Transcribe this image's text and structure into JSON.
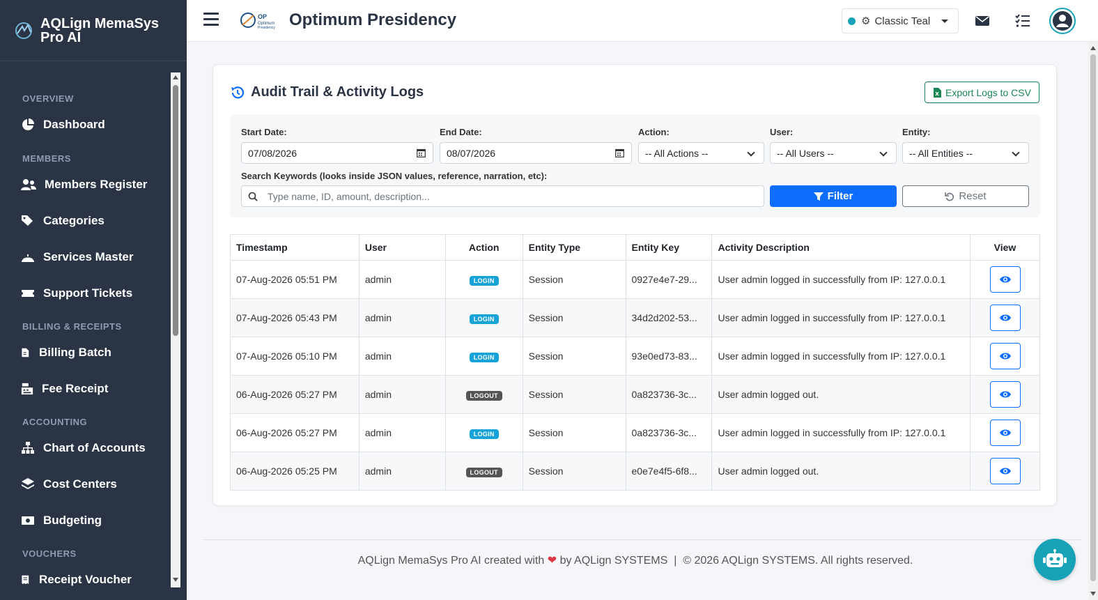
{
  "sidebar": {
    "brand": "AQLign MemaSys Pro AI",
    "sections": {
      "overview": "OVERVIEW",
      "members": "MEMBERS",
      "billing": "BILLING & RECEIPTS",
      "accounting": "ACCOUNTING",
      "vouchers": "VOUCHERS"
    },
    "items": {
      "dashboard": "Dashboard",
      "members_register": "Members Register",
      "categories": "Categories",
      "services_master": "Services Master",
      "support_tickets": "Support Tickets",
      "billing_batch": "Billing Batch",
      "fee_receipt": "Fee Receipt",
      "chart_of_accounts": "Chart of Accounts",
      "cost_centers": "Cost Centers",
      "budgeting": "Budgeting",
      "receipt_voucher": "Receipt Voucher"
    }
  },
  "header": {
    "org_name": "Optimum Presidency",
    "theme": "Classic Teal",
    "theme_color": "#17a2b8"
  },
  "card": {
    "title": "Audit Trail & Activity Logs",
    "export_label": "Export Logs to CSV"
  },
  "filters": {
    "start_date_label": "Start Date:",
    "start_date": "07/08/2026",
    "end_date_label": "End Date:",
    "end_date": "08/07/2026",
    "action_label": "Action:",
    "action_value": "-- All Actions --",
    "user_label": "User:",
    "user_value": "-- All Users --",
    "entity_label": "Entity:",
    "entity_value": "-- All Entities --",
    "search_label": "Search Keywords (looks inside JSON values, reference, narration, etc):",
    "search_placeholder": "Type name, ID, amount, description...",
    "filter_label": "Filter",
    "reset_label": "Reset"
  },
  "table": {
    "headers": {
      "timestamp": "Timestamp",
      "user": "User",
      "action": "Action",
      "entity_type": "Entity Type",
      "entity_key": "Entity Key",
      "description": "Activity Description",
      "view": "View"
    },
    "rows": [
      {
        "timestamp": "07-Aug-2026 05:51 PM",
        "user": "admin",
        "action": "LOGIN",
        "entity_type": "Session",
        "entity_key": "0927e4e7-29...",
        "description": "User admin logged in successfully from IP: 127.0.0.1"
      },
      {
        "timestamp": "07-Aug-2026 05:43 PM",
        "user": "admin",
        "action": "LOGIN",
        "entity_type": "Session",
        "entity_key": "34d2d202-53...",
        "description": "User admin logged in successfully from IP: 127.0.0.1"
      },
      {
        "timestamp": "07-Aug-2026 05:10 PM",
        "user": "admin",
        "action": "LOGIN",
        "entity_type": "Session",
        "entity_key": "93e0ed73-83...",
        "description": "User admin logged in successfully from IP: 127.0.0.1"
      },
      {
        "timestamp": "06-Aug-2026 05:27 PM",
        "user": "admin",
        "action": "LOGOUT",
        "entity_type": "Session",
        "entity_key": "0a823736-3c...",
        "description": "User admin logged out."
      },
      {
        "timestamp": "06-Aug-2026 05:27 PM",
        "user": "admin",
        "action": "LOGIN",
        "entity_type": "Session",
        "entity_key": "0a823736-3c...",
        "description": "User admin logged in successfully from IP: 127.0.0.1"
      },
      {
        "timestamp": "06-Aug-2026 05:25 PM",
        "user": "admin",
        "action": "LOGOUT",
        "entity_type": "Session",
        "entity_key": "e0e7e4f5-6f8...",
        "description": "User admin logged out."
      }
    ]
  },
  "footer": {
    "part1": "AQLign MemaSys Pro AI created with",
    "part2": "by AQLign SYSTEMS",
    "separator": "|",
    "copyright": "© 2026 AQLign SYSTEMS. All rights reserved."
  }
}
